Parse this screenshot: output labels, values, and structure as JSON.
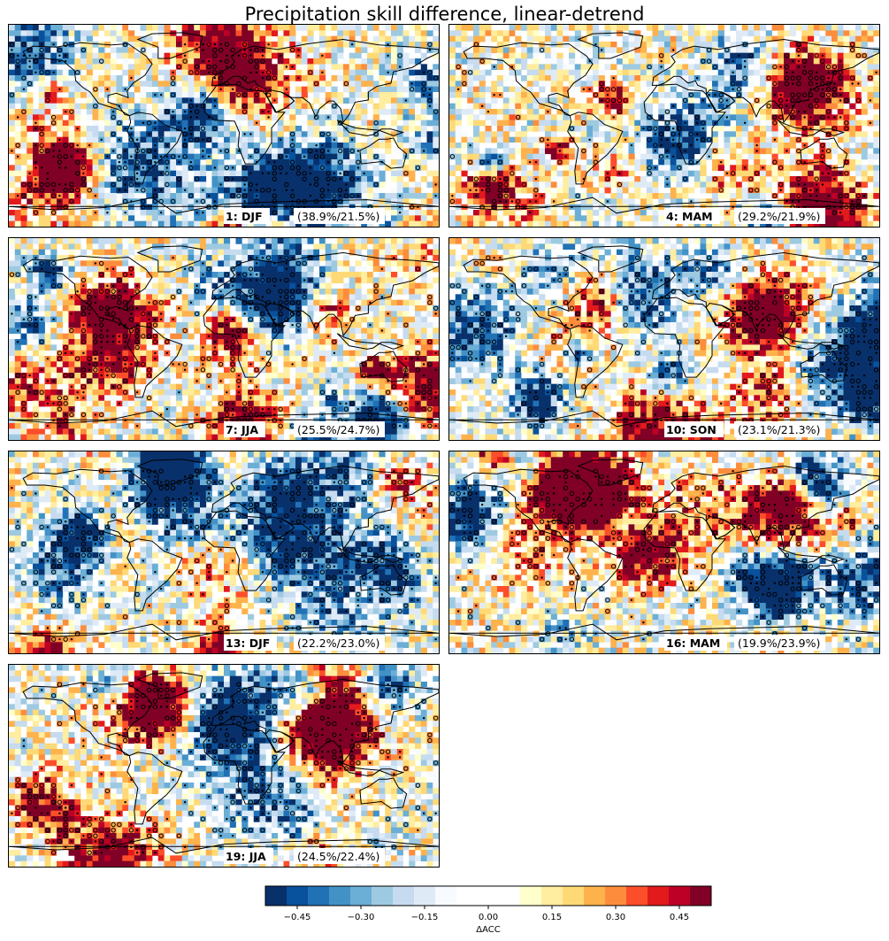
{
  "figure": {
    "title": "Precipitation skill difference, linear-detrend"
  },
  "chart_data": {
    "type": "heatmap",
    "description_kind": "global maps of precipitation skill difference (ΔACC) for 7 forecast start seasons",
    "panels": [
      {
        "label": "1: DJF",
        "stat": "(38.9%/21.5%)"
      },
      {
        "label": "4: MAM",
        "stat": "(29.2%/21.9%)"
      },
      {
        "label": "7: JJA",
        "stat": "(25.5%/24.7%)"
      },
      {
        "label": "10: SON",
        "stat": "(23.1%/21.3%)"
      },
      {
        "label": "13: DJF",
        "stat": "(22.2%/23.0%)"
      },
      {
        "label": "16: MAM",
        "stat": "(19.9%/23.9%)"
      },
      {
        "label": "19: JJA",
        "stat": "(24.5%/22.4%)"
      }
    ],
    "colorbar": {
      "label": "ΔACC",
      "range": [
        -0.525,
        0.525
      ],
      "step": 0.05,
      "ticks": [
        "−0.45",
        "−0.30",
        "−0.15",
        "0.00",
        "0.15",
        "0.30",
        "0.45"
      ],
      "tick_values": [
        -0.45,
        -0.3,
        -0.15,
        0.0,
        0.15,
        0.3,
        0.45
      ],
      "colors": [
        "#08306b",
        "#08519c",
        "#2171b5",
        "#4292c6",
        "#6baed6",
        "#9ecae1",
        "#c6dbef",
        "#deebf7",
        "#f7fbff",
        "#ffffff",
        "#ffffcc",
        "#ffeda0",
        "#fed976",
        "#feb24c",
        "#fd8d3c",
        "#fc4e2a",
        "#e31a1c",
        "#bd0026",
        "#800026",
        "#800026",
        "#800026"
      ]
    },
    "grid": {
      "nlon": 72,
      "nlat": 36
    },
    "markers": [
      "dot = significant",
      "open circle = significant"
    ]
  }
}
